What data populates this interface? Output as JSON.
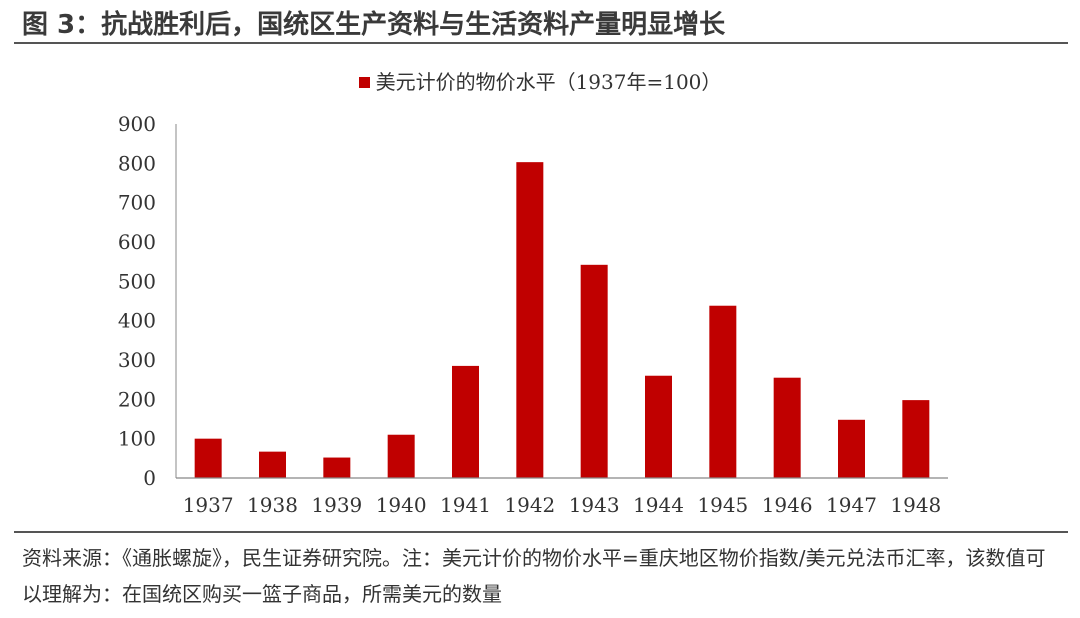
{
  "figure": {
    "title": "图 3：抗战胜利后，国统区生产资料与生活资料产量明显增长",
    "source_note": "资料来源：《通胀螺旋》，民生证券研究院。注：美元计价的物价水平=重庆地区物价指数/美元兑法币汇率，该数值可以理解为：在国统区购买一篮子商品，所需美元的数量"
  },
  "chart_data": {
    "type": "bar",
    "categories": [
      "1937",
      "1938",
      "1939",
      "1940",
      "1941",
      "1942",
      "1943",
      "1944",
      "1945",
      "1946",
      "1947",
      "1948"
    ],
    "series": [
      {
        "name": "美元计价的物价水平（1937年=100）",
        "values": [
          100,
          67,
          52,
          110,
          285,
          803,
          542,
          260,
          438,
          255,
          148,
          198
        ],
        "color": "#c00000"
      }
    ],
    "ylim": [
      0,
      900
    ],
    "yticks": [
      "0",
      "100",
      "200",
      "300",
      "400",
      "500",
      "600",
      "700",
      "800",
      "900"
    ],
    "legend_position": "top-center",
    "grid": false
  }
}
